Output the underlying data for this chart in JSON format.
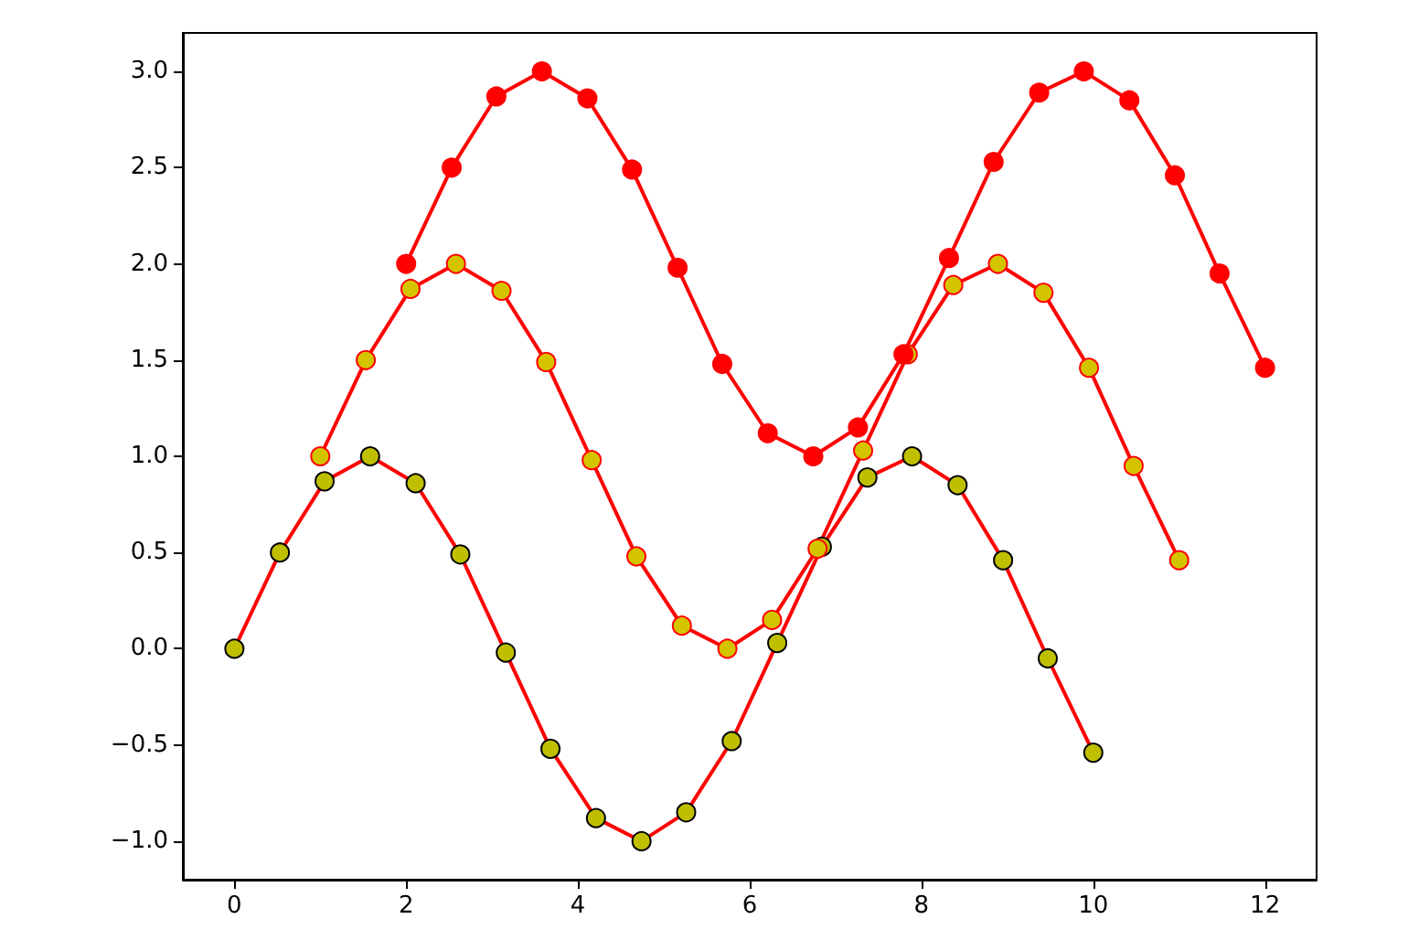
{
  "chart_data": {
    "type": "line",
    "marker": "circle",
    "grid": false,
    "xlim": [
      -0.6,
      12.6
    ],
    "xticks": [
      0,
      2,
      4,
      6,
      8,
      10,
      12
    ],
    "ylim": [
      -1.2,
      3.2
    ],
    "yticks": [
      {
        "value": -1,
        "label": "−1.0"
      },
      {
        "value": -0.5,
        "label": "−0.5"
      },
      {
        "value": 0,
        "label": "0.0"
      },
      {
        "value": 0.5,
        "label": "0.5"
      },
      {
        "value": 1,
        "label": "1.0"
      },
      {
        "value": 1.5,
        "label": "1.5"
      },
      {
        "value": 2,
        "label": "2.0"
      },
      {
        "value": 2.5,
        "label": "2.5"
      },
      {
        "value": 3,
        "label": "3.0"
      }
    ],
    "series": [
      {
        "color": "#ff0000",
        "colors": [
          "#bfbf00",
          "#bfbf00",
          "#bfbf00",
          "#bfbf00",
          "#bfbf00",
          "#bfbf00",
          "#bfbf00",
          "#bfbf00",
          "#bfbf00",
          "#bfbf00",
          "#bfbf00",
          "#bfbf00",
          "#bfbf00",
          "#bfbf00",
          "#bfbf00",
          "#bfbf00",
          "#bfbf00",
          "#bfbf00",
          "#bfbf00",
          "#bfbf00"
        ],
        "x": [
          0,
          0.53,
          1.05,
          1.58,
          2.11,
          2.63,
          3.16,
          3.68,
          4.21,
          4.74,
          5.26,
          5.79,
          6.32,
          6.84,
          7.37,
          7.89,
          8.42,
          8.95,
          9.47,
          10
        ],
        "values": [
          0,
          0.5,
          0.87,
          1,
          0.86,
          0.49,
          -0.02,
          -0.52,
          -0.88,
          -1,
          -0.85,
          -0.48,
          0.03,
          0.53,
          0.89,
          1,
          0.85,
          0.46,
          -0.05,
          -0.54
        ]
      },
      {
        "color": "#ff0000",
        "colors": [
          "#d4c400",
          "#d4c400",
          "#d4c400",
          "#d4c400",
          "#d4c400",
          "#d4c400",
          "#d4c400",
          "#d4c400",
          "#d4c400",
          "#d4c400",
          "#d4c400",
          "#d4c400",
          "#d4c400",
          "#d4c400",
          "#d4c400",
          "#d4c400",
          "#d4c400",
          "#d4c400",
          "#d4c400",
          "#d4c400"
        ],
        "x": [
          1,
          1.53,
          2.05,
          2.58,
          3.11,
          3.63,
          4.16,
          4.68,
          5.21,
          5.74,
          6.26,
          6.79,
          7.32,
          7.84,
          8.37,
          8.89,
          9.42,
          9.95,
          10.47,
          11
        ],
        "values": [
          1,
          1.5,
          1.87,
          2,
          1.86,
          1.49,
          0.98,
          0.48,
          0.12,
          0,
          0.15,
          0.52,
          1.03,
          1.53,
          1.89,
          2,
          1.85,
          1.46,
          0.95,
          0.46
        ]
      },
      {
        "color": "#ff0000",
        "colors": [
          "#ff0000",
          "#ff0000",
          "#ff0000",
          "#ff0000",
          "#ff0000",
          "#ff0000",
          "#ff0000",
          "#ff0000",
          "#ff0000",
          "#ff0000",
          "#ff0000",
          "#ff0000",
          "#ff0000",
          "#ff0000",
          "#ff0000",
          "#ff0000",
          "#ff0000",
          "#ff0000",
          "#ff0000",
          "#ff0000"
        ],
        "x": [
          2,
          2.53,
          3.05,
          3.58,
          4.11,
          4.63,
          5.16,
          5.68,
          6.21,
          6.74,
          7.26,
          7.79,
          8.32,
          8.84,
          9.37,
          9.89,
          10.42,
          10.95,
          11.47,
          12
        ],
        "values": [
          2,
          2.5,
          2.87,
          3,
          2.86,
          2.49,
          1.98,
          1.48,
          1.12,
          1,
          1.15,
          1.53,
          2.03,
          2.53,
          2.89,
          3,
          2.85,
          2.46,
          1.95,
          1.46
        ]
      }
    ]
  }
}
